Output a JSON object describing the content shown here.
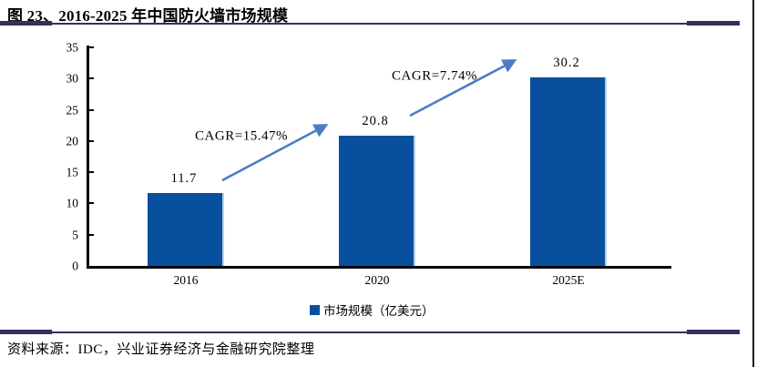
{
  "figure": {
    "title": "图 23、2016-2025 年中国防火墙市场规模",
    "source": "资料来源：IDC，兴业证券经济与金融研究院整理"
  },
  "chart_data": {
    "type": "bar",
    "title": "图 23、2016-2025 年中国防火墙市场规模",
    "categories": [
      "2016",
      "2020",
      "2025E"
    ],
    "values": [
      11.7,
      20.8,
      30.2
    ],
    "ylim": [
      0,
      35
    ],
    "yticks": [
      0,
      5,
      10,
      15,
      20,
      25,
      30,
      35
    ],
    "grid": false,
    "legend": {
      "label": "市场规模（亿美元）",
      "position": "bottom-center"
    },
    "annotations": [
      {
        "text": "CAGR=15.47%",
        "from": "2016",
        "to": "2020"
      },
      {
        "text": "CAGR=7.74%",
        "from": "2020",
        "to": "2025E"
      }
    ],
    "bar_color": "#084F9E",
    "arrow_color": "#4C7CC7",
    "axis_color": "#000000",
    "rule_color": "#31315E"
  }
}
